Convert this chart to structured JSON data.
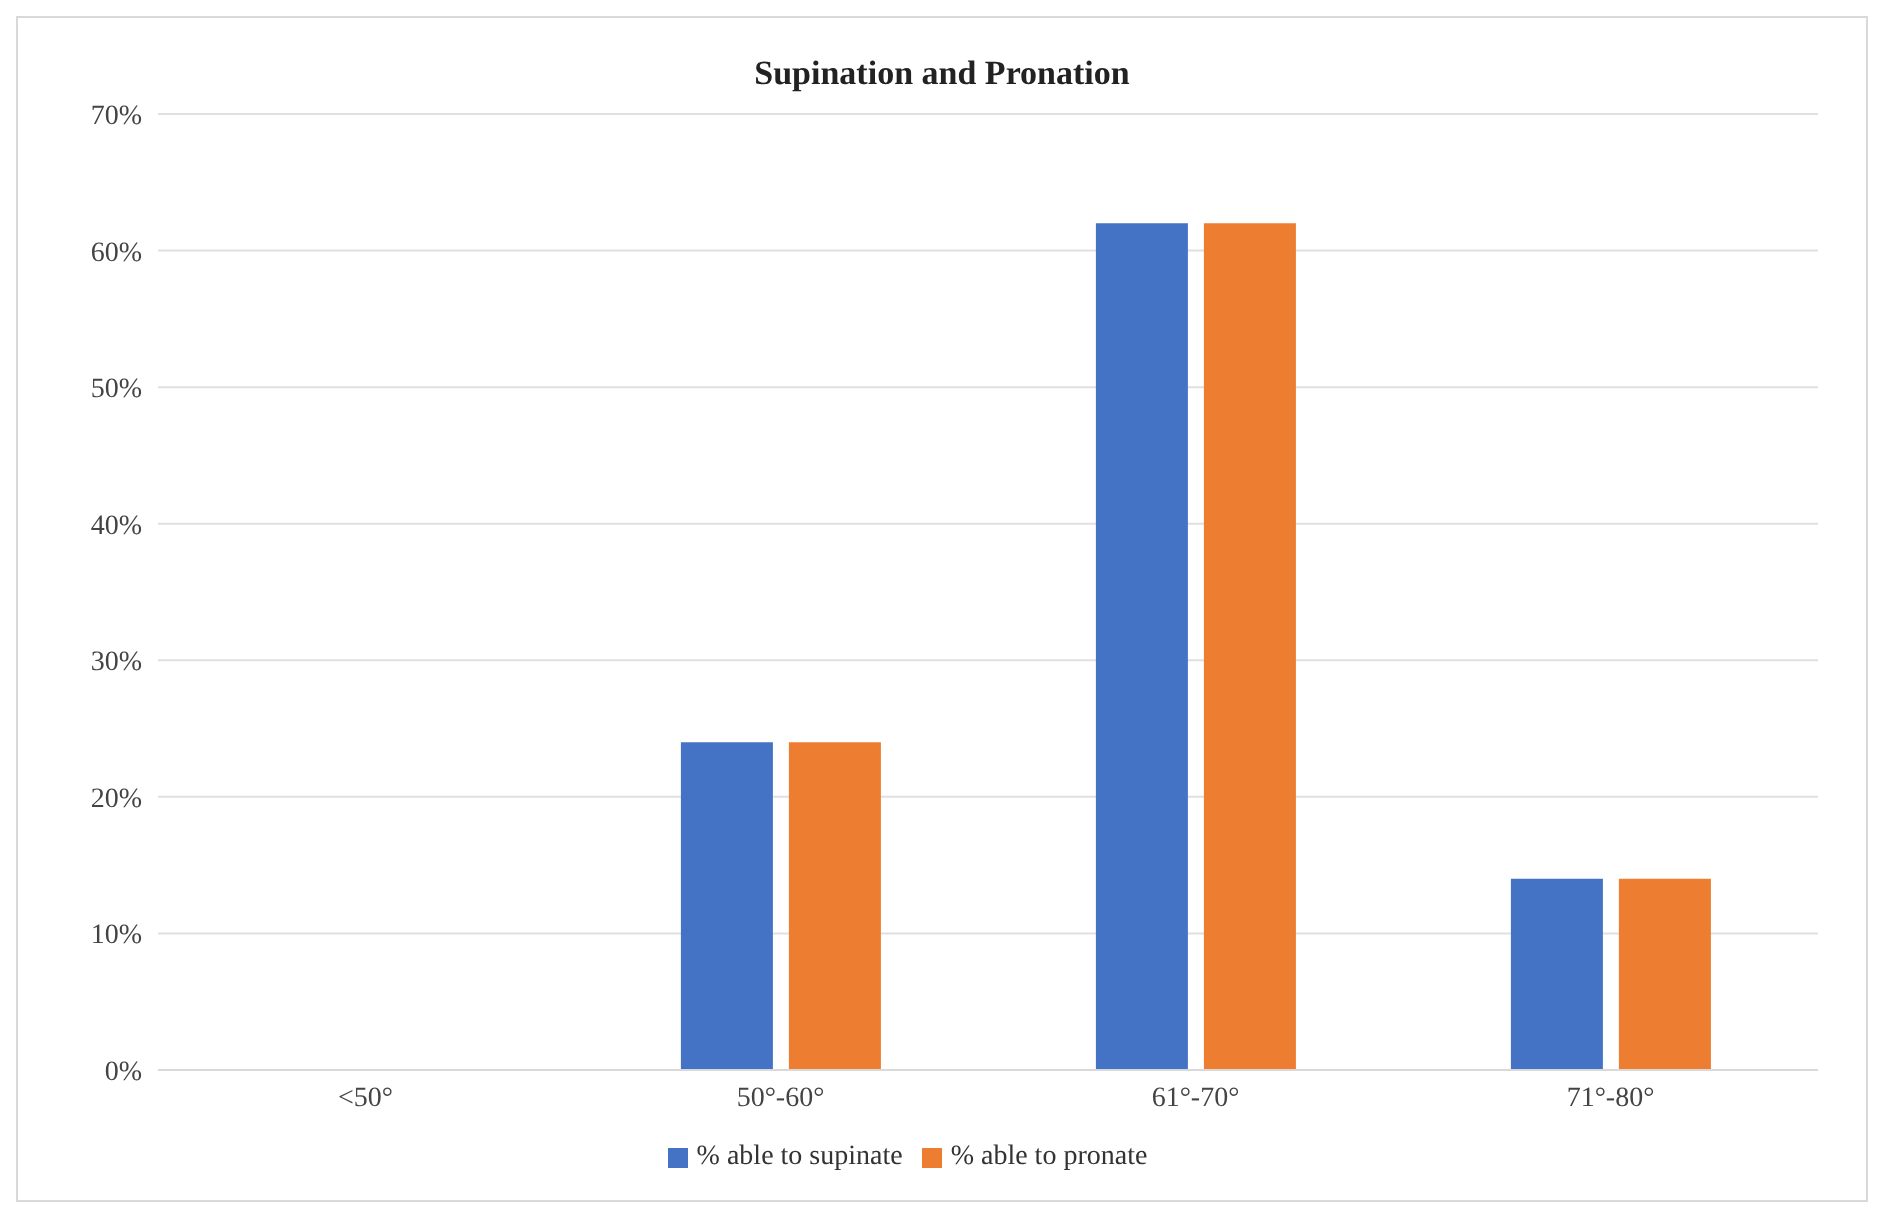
{
  "chart_data": {
    "type": "bar",
    "title": "Supination and Pronation",
    "categories": [
      "<50°",
      "50°-60°",
      "61°-70°",
      "71°-80°"
    ],
    "series": [
      {
        "name": "% able to supinate",
        "color": "#4472c4",
        "values": [
          0,
          24,
          62,
          14
        ]
      },
      {
        "name": "% able to pronate",
        "color": "#ed7d31",
        "values": [
          0,
          24,
          62,
          14
        ]
      }
    ],
    "ylim": [
      0,
      70
    ],
    "yticks": [
      {
        "value": 0,
        "label": "0%"
      },
      {
        "value": 10,
        "label": "10%"
      },
      {
        "value": 20,
        "label": "20%"
      },
      {
        "value": 30,
        "label": "30%"
      },
      {
        "value": 40,
        "label": "40%"
      },
      {
        "value": 50,
        "label": "50%"
      },
      {
        "value": 60,
        "label": "60%"
      },
      {
        "value": 70,
        "label": "70%"
      }
    ],
    "grid": "y",
    "legend": "bottom"
  }
}
